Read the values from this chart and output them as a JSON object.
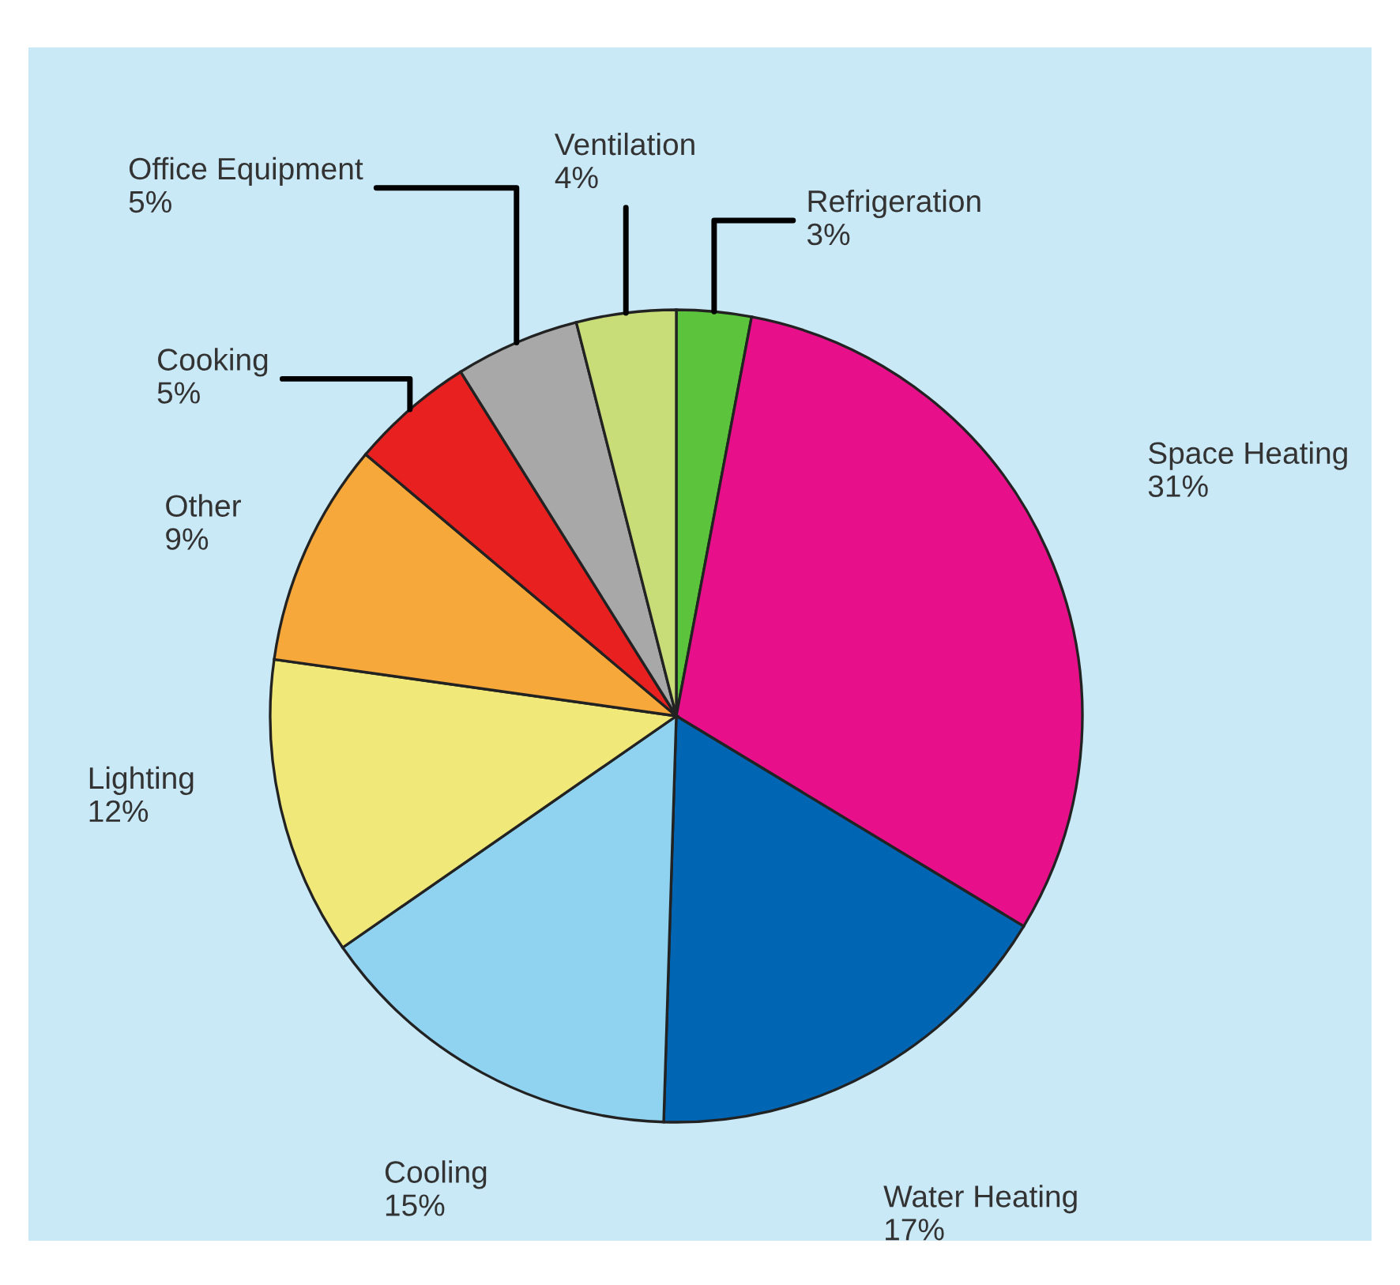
{
  "chart_data": {
    "type": "pie",
    "categories": [
      "Refrigeration",
      "Space Heating",
      "Water Heating",
      "Cooling",
      "Lighting",
      "Other",
      "Cooking",
      "Office Equipment",
      "Ventilation"
    ],
    "values": [
      3,
      31,
      17,
      15,
      12,
      9,
      5,
      5,
      4
    ],
    "value_labels": [
      "3%",
      "31%",
      "17%",
      "15%",
      "12%",
      "9%",
      "5%",
      "5%",
      "4%"
    ],
    "colors": [
      "#5cc43c",
      "#e8108a",
      "#0066b3",
      "#8fd3f0",
      "#f0e878",
      "#f7a83a",
      "#e82020",
      "#a8a8a8",
      "#c8dc78"
    ]
  }
}
